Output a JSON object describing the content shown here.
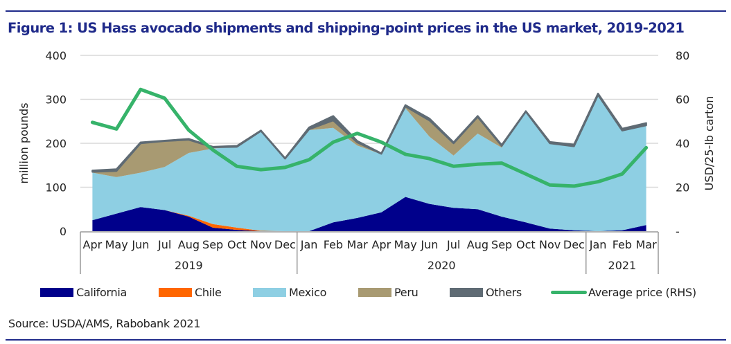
{
  "figure": {
    "title": "Figure 1: US Hass avocado shipments and shipping-point prices in the US market, 2019-2021",
    "source": "Source: USDA/AMS, Rabobank 2021"
  },
  "chart_data": {
    "type": "area",
    "stacked": true,
    "title": "Figure 1: US Hass avocado shipments and shipping-point prices in the US market, 2019-2021",
    "ylabel": "million pounds",
    "y2label": "USD/25-lb carton",
    "ylim": [
      0,
      400
    ],
    "y2lim": [
      0,
      80
    ],
    "yticks": [
      "0",
      "100",
      "200",
      "300",
      "400"
    ],
    "y2ticks": [
      "-",
      "20",
      "40",
      "60",
      "80"
    ],
    "grid": true,
    "legend_position": "bottom",
    "categories": [
      "Apr",
      "May",
      "Jun",
      "Jul",
      "Aug",
      "Sep",
      "Oct",
      "Nov",
      "Dec",
      "Jan",
      "Feb",
      "Mar",
      "Apr",
      "May",
      "Jun",
      "Jul",
      "Aug",
      "Sep",
      "Oct",
      "Nov",
      "Dec",
      "Jan",
      "Feb",
      "Mar"
    ],
    "year_groups": [
      {
        "label": "2019",
        "count": 9
      },
      {
        "label": "2020",
        "count": 12
      },
      {
        "label": "2021",
        "count": 3
      }
    ],
    "series": [
      {
        "name": "California",
        "color": "#00008b",
        "axis": "left",
        "kind": "area",
        "values": [
          25,
          40,
          55,
          48,
          33,
          8,
          3,
          0,
          0,
          0,
          20,
          30,
          43,
          78,
          62,
          53,
          50,
          33,
          20,
          6,
          2,
          0,
          2,
          14
        ]
      },
      {
        "name": "Chile",
        "color": "#ff6600",
        "axis": "left",
        "kind": "area",
        "values": [
          0,
          0,
          0,
          0,
          2,
          8,
          5,
          1,
          0,
          0,
          0,
          0,
          0,
          0,
          0,
          0,
          0,
          0,
          0,
          0,
          0,
          0,
          0,
          0
        ]
      },
      {
        "name": "Mexico",
        "color": "#8ecfe3",
        "axis": "left",
        "kind": "area",
        "values": [
          108,
          83,
          78,
          98,
          143,
          172,
          184,
          227,
          165,
          230,
          215,
          165,
          132,
          202,
          153,
          119,
          172,
          157,
          252,
          194,
          191,
          310,
          226,
          226
        ]
      },
      {
        "name": "Peru",
        "color": "#a89a72",
        "axis": "left",
        "kind": "area",
        "values": [
          2,
          14,
          67,
          59,
          30,
          3,
          0,
          0,
          0,
          2,
          17,
          7,
          1,
          4,
          37,
          28,
          38,
          4,
          0,
          0,
          0,
          0,
          1,
          1
        ]
      },
      {
        "name": "Others",
        "color": "#5f6b74",
        "axis": "left",
        "kind": "area",
        "values": [
          3,
          4,
          2,
          1,
          2,
          1,
          2,
          1,
          1,
          4,
          10,
          3,
          1,
          3,
          4,
          2,
          2,
          2,
          1,
          3,
          4,
          3,
          4,
          5
        ]
      },
      {
        "name": "Average price (RHS)",
        "color": "#36b36a",
        "axis": "right",
        "kind": "line",
        "values": [
          49.5,
          46.5,
          64.5,
          60.5,
          46,
          37,
          29.5,
          28,
          29,
          32.5,
          40.5,
          44.5,
          40.5,
          35,
          33,
          29.5,
          30.5,
          31,
          26,
          21,
          20.5,
          22.5,
          26,
          38
        ]
      }
    ]
  }
}
